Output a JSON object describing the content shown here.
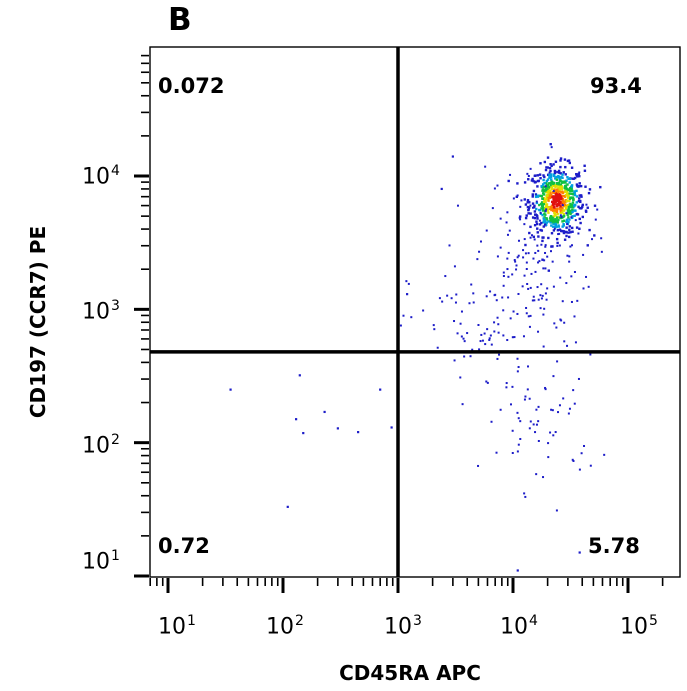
{
  "panel_label": "B",
  "chart_data": {
    "type": "scatter",
    "subtype": "flow-cytometry-density-dot-plot",
    "xlabel": "CD45RA APC",
    "ylabel": "CD197 (CCR7) PE",
    "x_scale": "log",
    "y_scale": "log",
    "x_ticks": [
      {
        "base": "10",
        "exp": "1"
      },
      {
        "base": "10",
        "exp": "2"
      },
      {
        "base": "10",
        "exp": "3"
      },
      {
        "base": "10",
        "exp": "4"
      },
      {
        "base": "10",
        "exp": "5"
      }
    ],
    "y_ticks": [
      {
        "base": "10",
        "exp": "1"
      },
      {
        "base": "10",
        "exp": "2"
      },
      {
        "base": "10",
        "exp": "3"
      },
      {
        "base": "10",
        "exp": "4"
      }
    ],
    "xlim": [
      7,
      300000
    ],
    "ylim": [
      10,
      80000
    ],
    "gate": {
      "x": 1000,
      "y": 480
    },
    "quadrants": {
      "upper_left": "0.072",
      "upper_right": "93.4",
      "lower_left": "0.72",
      "lower_right": "5.78"
    },
    "density_colors": [
      "#1c1cc8",
      "#00a0e0",
      "#10c040",
      "#e0e000",
      "#ff8000",
      "#e01010"
    ],
    "populations": [
      {
        "name": "",
        "x_center": 24000,
        "y_center": 6500,
        "x_spread": 0.12,
        "y_spread": 0.13,
        "count": 650,
        "dense": true
      },
      {
        "name": "",
        "x_center": 15000,
        "y_center": 2500,
        "x_spread": 0.25,
        "y_spread": 0.35,
        "count": 170,
        "dense": false
      },
      {
        "name": "",
        "x_center": 5000,
        "y_center": 700,
        "x_spread": 0.3,
        "y_spread": 0.25,
        "count": 70,
        "dense": false
      },
      {
        "name": "",
        "x_center": 18000,
        "y_center": 140,
        "x_spread": 0.25,
        "y_spread": 0.25,
        "count": 60,
        "dense": false
      }
    ],
    "sparse_points": [
      {
        "x": 35,
        "y": 250
      },
      {
        "x": 140,
        "y": 320
      },
      {
        "x": 130,
        "y": 150
      },
      {
        "x": 150,
        "y": 118
      },
      {
        "x": 230,
        "y": 170
      },
      {
        "x": 300,
        "y": 128
      },
      {
        "x": 450,
        "y": 120
      },
      {
        "x": 700,
        "y": 250
      },
      {
        "x": 880,
        "y": 130
      },
      {
        "x": 110,
        "y": 33
      },
      {
        "x": 38000,
        "y": 15
      },
      {
        "x": 11000,
        "y": 11
      },
      {
        "x": 1200,
        "y": 1300
      },
      {
        "x": 3000,
        "y": 14000
      },
      {
        "x": 2400,
        "y": 8000
      }
    ]
  }
}
